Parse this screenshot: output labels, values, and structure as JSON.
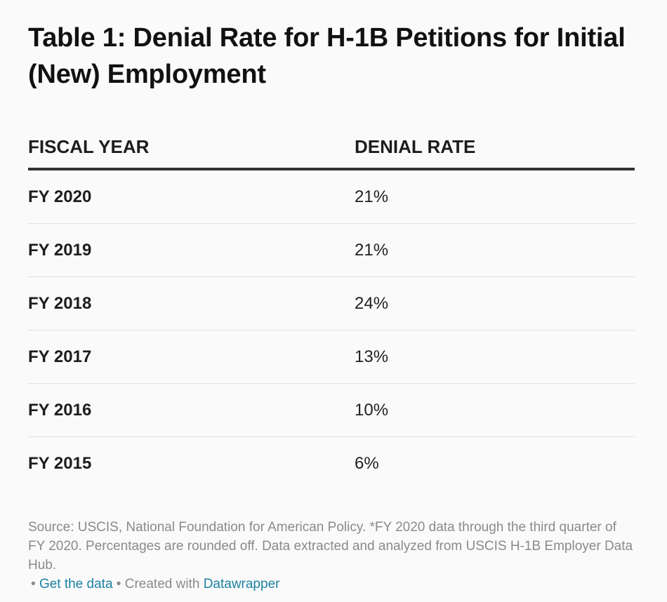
{
  "title": "Table 1: Denial Rate for H-1B Petitions for Initial (New) Employment",
  "table": {
    "headers": [
      "FISCAL YEAR",
      "DENIAL RATE"
    ],
    "rows": [
      {
        "year": "FY 2020",
        "rate": "21%"
      },
      {
        "year": "FY 2019",
        "rate": "21%"
      },
      {
        "year": "FY 2018",
        "rate": "24%"
      },
      {
        "year": "FY 2017",
        "rate": "13%"
      },
      {
        "year": "FY 2016",
        "rate": "10%"
      },
      {
        "year": "FY 2015",
        "rate": "6%"
      }
    ]
  },
  "footer": {
    "source": "Source: USCIS, National Foundation for American Policy. *FY 2020 data through the third quarter of FY 2020. Percentages are rounded off. Data extracted and analyzed from USCIS H-1B Employer Data Hub.",
    "bullet": "•",
    "get_data_link": "Get the data",
    "created_with": "Created with",
    "datawrapper_link": "Datawrapper"
  },
  "colors": {
    "link": "#1d81a2",
    "footer_text": "#8a8a8a",
    "header_rule": "#333333"
  },
  "chart_data": {
    "type": "table",
    "title": "Table 1: Denial Rate for H-1B Petitions for Initial (New) Employment",
    "columns": [
      "FISCAL YEAR",
      "DENIAL RATE"
    ],
    "categories": [
      "FY 2020",
      "FY 2019",
      "FY 2018",
      "FY 2017",
      "FY 2016",
      "FY 2015"
    ],
    "values": [
      21,
      21,
      24,
      13,
      10,
      6
    ],
    "unit": "%"
  }
}
